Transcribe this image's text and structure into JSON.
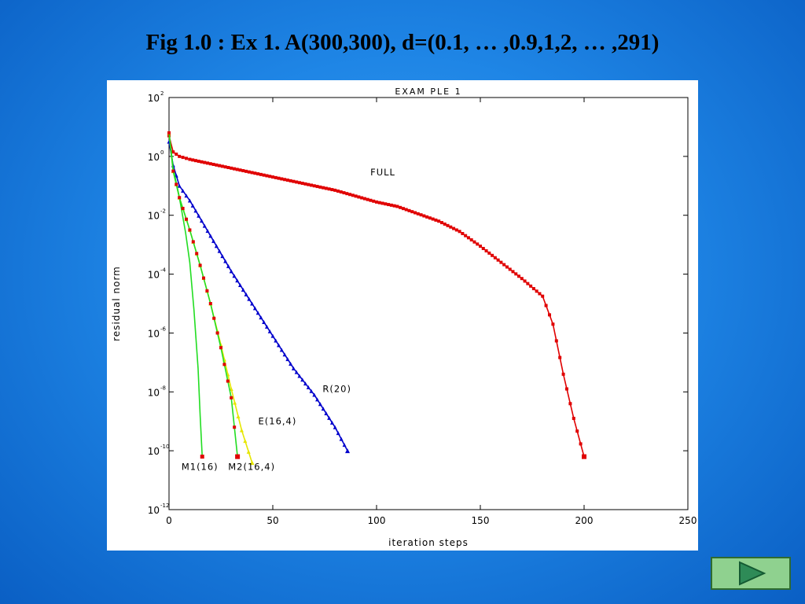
{
  "slide": {
    "title": "Fig 1.0 : Ex 1. A(300,300), d=(0.1, … ,0.9,1,2, … ,291)"
  },
  "nav": {
    "next_icon": "play-triangle-icon"
  },
  "colors": {
    "full": "#e00000",
    "restarted": "#0000cc",
    "green": "#22dd22",
    "yellow": "#e6e600",
    "axis": "#000000"
  },
  "chart_data": {
    "type": "line",
    "title": "EXAM PLE 1",
    "xlabel": "iteration steps",
    "ylabel": "residual norm",
    "xlim": [
      0,
      250
    ],
    "ylim_exp": [
      -12,
      2
    ],
    "log_y": true,
    "grid": false,
    "x_ticks": [
      0,
      50,
      100,
      150,
      200,
      250
    ],
    "x_tick_labels": [
      "0",
      "50",
      "100",
      "150",
      "200",
      "250"
    ],
    "y_ticks_exp": [
      2,
      0,
      -2,
      -4,
      -6,
      -8,
      -10,
      -12
    ],
    "y_tick_base": "10",
    "y_tick_exps": [
      "2",
      "0",
      "-2",
      "-4",
      "-6",
      "-8",
      "-10",
      "-12"
    ],
    "series": [
      {
        "name": "FULL",
        "color": "#e00000",
        "marker": "square",
        "label_at": [
          97,
          -0.65
        ],
        "points": [
          [
            0,
            0.7
          ],
          [
            2,
            0.15
          ],
          [
            5,
            0.0
          ],
          [
            10,
            -0.1
          ],
          [
            20,
            -0.25
          ],
          [
            30,
            -0.4
          ],
          [
            40,
            -0.55
          ],
          [
            50,
            -0.7
          ],
          [
            60,
            -0.85
          ],
          [
            70,
            -1.0
          ],
          [
            80,
            -1.15
          ],
          [
            90,
            -1.35
          ],
          [
            100,
            -1.55
          ],
          [
            110,
            -1.7
          ],
          [
            120,
            -1.95
          ],
          [
            130,
            -2.2
          ],
          [
            140,
            -2.55
          ],
          [
            150,
            -3.05
          ],
          [
            160,
            -3.6
          ],
          [
            170,
            -4.15
          ],
          [
            180,
            -4.75
          ],
          [
            185,
            -5.7
          ],
          [
            190,
            -7.4
          ],
          [
            195,
            -8.9
          ],
          [
            200,
            -10.2
          ]
        ]
      },
      {
        "name": "R(20)",
        "color": "#0000cc",
        "marker": "triangle",
        "label_at": [
          74,
          -8.0
        ],
        "points": [
          [
            0,
            0.5
          ],
          [
            2,
            -0.3
          ],
          [
            5,
            -1.0
          ],
          [
            10,
            -1.5
          ],
          [
            20,
            -2.7
          ],
          [
            30,
            -3.9
          ],
          [
            40,
            -5.0
          ],
          [
            50,
            -6.1
          ],
          [
            60,
            -7.2
          ],
          [
            70,
            -8.1
          ],
          [
            80,
            -9.2
          ],
          [
            86,
            -10.0
          ]
        ]
      },
      {
        "name": "E(16,4)",
        "color": "#e6e600",
        "marker": "triangle",
        "label_at": [
          43,
          -9.1
        ],
        "points": [
          [
            0,
            0.8
          ],
          [
            2,
            -0.5
          ],
          [
            5,
            -1.4
          ],
          [
            10,
            -2.5
          ],
          [
            15,
            -3.7
          ],
          [
            20,
            -5.0
          ],
          [
            25,
            -6.4
          ],
          [
            30,
            -7.9
          ],
          [
            35,
            -9.3
          ],
          [
            40,
            -10.4
          ]
        ]
      },
      {
        "name": "M1(16)",
        "color": "#22dd22",
        "marker": "none",
        "label_at": [
          6,
          -10.65
        ],
        "points": [
          [
            0,
            0.8
          ],
          [
            2,
            -0.4
          ],
          [
            5,
            -1.4
          ],
          [
            8,
            -2.6
          ],
          [
            10,
            -3.6
          ],
          [
            12,
            -5.2
          ],
          [
            14,
            -7.2
          ],
          [
            15,
            -8.8
          ],
          [
            16,
            -10.2
          ]
        ]
      },
      {
        "name": "M2(16,4)",
        "color": "#22dd22",
        "marker": "square",
        "label_at": [
          28.5,
          -10.65
        ],
        "points": [
          [
            0,
            0.8
          ],
          [
            2,
            -0.5
          ],
          [
            5,
            -1.4
          ],
          [
            10,
            -2.5
          ],
          [
            15,
            -3.7
          ],
          [
            20,
            -5.0
          ],
          [
            25,
            -6.5
          ],
          [
            30,
            -8.2
          ],
          [
            33,
            -10.2
          ]
        ]
      }
    ]
  }
}
